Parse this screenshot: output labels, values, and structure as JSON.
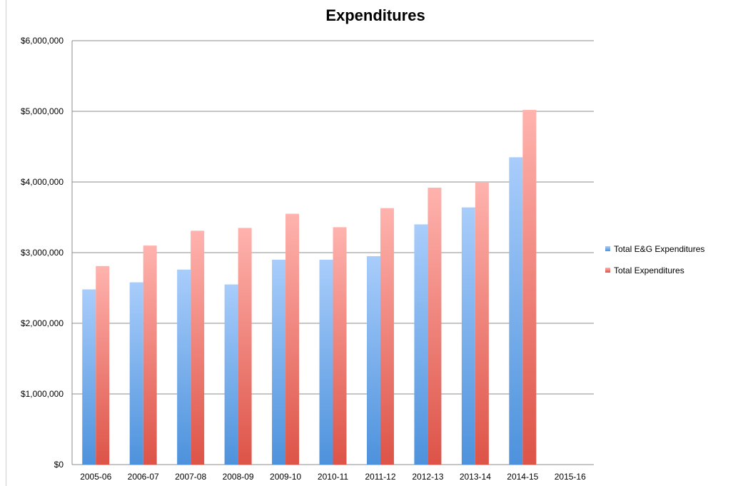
{
  "chart_data": {
    "type": "bar",
    "title": "Expenditures",
    "xlabel": "",
    "ylabel": "",
    "categories": [
      "2005-06",
      "2006-07",
      "2007-08",
      "2008-09",
      "2009-10",
      "2010-11",
      "2011-12",
      "2012-13",
      "2013-14",
      "2014-15",
      "2015-16"
    ],
    "series": [
      {
        "name": "Total E&G Expenditures",
        "color": "#5b9bd5",
        "values": [
          2480000,
          2580000,
          2760000,
          2550000,
          2900000,
          2900000,
          2950000,
          3400000,
          3640000,
          4350000,
          null
        ]
      },
      {
        "name": "Total Expenditures",
        "color": "#e06666",
        "values": [
          2810000,
          3100000,
          3310000,
          3350000,
          3550000,
          3360000,
          3630000,
          3920000,
          4000000,
          5020000,
          null
        ]
      }
    ],
    "ylim": [
      0,
      6000000
    ],
    "yticks": [
      0,
      1000000,
      2000000,
      3000000,
      4000000,
      5000000,
      6000000
    ],
    "ytick_labels": [
      "$0",
      "$1,000,000",
      "$2,000,000",
      "$3,000,000",
      "$4,000,000",
      "$5,000,000",
      "$6,000,000"
    ],
    "grid": true,
    "legend_position": "right"
  }
}
